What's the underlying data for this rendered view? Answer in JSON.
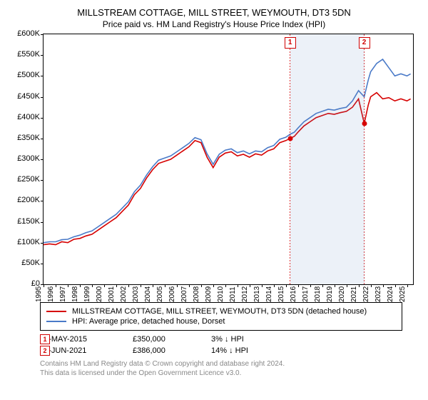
{
  "title_main": "MILLSTREAM COTTAGE, MILL STREET, WEYMOUTH, DT3 5DN",
  "title_sub": "Price paid vs. HM Land Registry's House Price Index (HPI)",
  "chart": {
    "type": "line",
    "xlim": [
      1995,
      2025.5
    ],
    "ylim": [
      0,
      600000
    ],
    "ytick_step": 50000,
    "ytick_labels": [
      "£0",
      "£50K",
      "£100K",
      "£150K",
      "£200K",
      "£250K",
      "£300K",
      "£350K",
      "£400K",
      "£450K",
      "£500K",
      "£550K",
      "£600K"
    ],
    "xtick_step": 1,
    "xticks": [
      1995,
      1996,
      1997,
      1998,
      1999,
      2000,
      2001,
      2002,
      2003,
      2004,
      2005,
      2006,
      2007,
      2008,
      2009,
      2010,
      2011,
      2012,
      2013,
      2014,
      2015,
      2016,
      2017,
      2018,
      2019,
      2020,
      2021,
      2022,
      2023,
      2024,
      2025
    ],
    "background_color": "#ffffff",
    "shade_ranges": [
      [
        2015.35,
        2021.47
      ]
    ],
    "line_width": 1.6,
    "series": [
      {
        "name": "property",
        "color": "#d60000",
        "points": [
          [
            1995.0,
            95000
          ],
          [
            1995.5,
            97000
          ],
          [
            1996.0,
            95000
          ],
          [
            1996.5,
            102000
          ],
          [
            1997.0,
            100000
          ],
          [
            1997.5,
            108000
          ],
          [
            1998.0,
            110000
          ],
          [
            1998.5,
            116000
          ],
          [
            1999.0,
            120000
          ],
          [
            1999.5,
            130000
          ],
          [
            2000.0,
            140000
          ],
          [
            2000.5,
            150000
          ],
          [
            2001.0,
            160000
          ],
          [
            2001.5,
            175000
          ],
          [
            2002.0,
            190000
          ],
          [
            2002.5,
            215000
          ],
          [
            2003.0,
            230000
          ],
          [
            2003.5,
            255000
          ],
          [
            2004.0,
            275000
          ],
          [
            2004.5,
            290000
          ],
          [
            2005.0,
            295000
          ],
          [
            2005.5,
            300000
          ],
          [
            2006.0,
            310000
          ],
          [
            2006.5,
            320000
          ],
          [
            2007.0,
            330000
          ],
          [
            2007.5,
            345000
          ],
          [
            2008.0,
            340000
          ],
          [
            2008.5,
            305000
          ],
          [
            2009.0,
            280000
          ],
          [
            2009.5,
            305000
          ],
          [
            2010.0,
            315000
          ],
          [
            2010.5,
            318000
          ],
          [
            2011.0,
            308000
          ],
          [
            2011.5,
            312000
          ],
          [
            2012.0,
            305000
          ],
          [
            2012.5,
            313000
          ],
          [
            2013.0,
            310000
          ],
          [
            2013.5,
            320000
          ],
          [
            2014.0,
            325000
          ],
          [
            2014.5,
            340000
          ],
          [
            2015.0,
            345000
          ],
          [
            2015.35,
            350000
          ],
          [
            2015.7,
            355000
          ],
          [
            2016.0,
            365000
          ],
          [
            2016.5,
            380000
          ],
          [
            2017.0,
            390000
          ],
          [
            2017.5,
            400000
          ],
          [
            2018.0,
            405000
          ],
          [
            2018.5,
            410000
          ],
          [
            2019.0,
            408000
          ],
          [
            2019.5,
            412000
          ],
          [
            2020.0,
            415000
          ],
          [
            2020.5,
            425000
          ],
          [
            2021.0,
            445000
          ],
          [
            2021.47,
            386000
          ],
          [
            2021.8,
            430000
          ],
          [
            2022.0,
            450000
          ],
          [
            2022.5,
            460000
          ],
          [
            2023.0,
            445000
          ],
          [
            2023.5,
            448000
          ],
          [
            2024.0,
            440000
          ],
          [
            2024.5,
            445000
          ],
          [
            2025.0,
            440000
          ],
          [
            2025.3,
            445000
          ]
        ]
      },
      {
        "name": "hpi",
        "color": "#4a7ac8",
        "points": [
          [
            1995.0,
            100000
          ],
          [
            1995.5,
            102000
          ],
          [
            1996.0,
            102000
          ],
          [
            1996.5,
            107000
          ],
          [
            1997.0,
            108000
          ],
          [
            1997.5,
            114000
          ],
          [
            1998.0,
            118000
          ],
          [
            1998.5,
            124000
          ],
          [
            1999.0,
            128000
          ],
          [
            1999.5,
            138000
          ],
          [
            2000.0,
            148000
          ],
          [
            2000.5,
            158000
          ],
          [
            2001.0,
            168000
          ],
          [
            2001.5,
            183000
          ],
          [
            2002.0,
            198000
          ],
          [
            2002.5,
            222000
          ],
          [
            2003.0,
            238000
          ],
          [
            2003.5,
            262000
          ],
          [
            2004.0,
            282000
          ],
          [
            2004.5,
            298000
          ],
          [
            2005.0,
            303000
          ],
          [
            2005.5,
            308000
          ],
          [
            2006.0,
            318000
          ],
          [
            2006.5,
            328000
          ],
          [
            2007.0,
            338000
          ],
          [
            2007.5,
            352000
          ],
          [
            2008.0,
            347000
          ],
          [
            2008.5,
            313000
          ],
          [
            2009.0,
            288000
          ],
          [
            2009.5,
            312000
          ],
          [
            2010.0,
            322000
          ],
          [
            2010.5,
            325000
          ],
          [
            2011.0,
            316000
          ],
          [
            2011.5,
            320000
          ],
          [
            2012.0,
            313000
          ],
          [
            2012.5,
            320000
          ],
          [
            2013.0,
            318000
          ],
          [
            2013.5,
            328000
          ],
          [
            2014.0,
            333000
          ],
          [
            2014.5,
            348000
          ],
          [
            2015.0,
            353000
          ],
          [
            2015.35,
            360000
          ],
          [
            2015.7,
            365000
          ],
          [
            2016.0,
            375000
          ],
          [
            2016.5,
            390000
          ],
          [
            2017.0,
            400000
          ],
          [
            2017.5,
            410000
          ],
          [
            2018.0,
            415000
          ],
          [
            2018.5,
            420000
          ],
          [
            2019.0,
            418000
          ],
          [
            2019.5,
            422000
          ],
          [
            2020.0,
            425000
          ],
          [
            2020.5,
            440000
          ],
          [
            2021.0,
            465000
          ],
          [
            2021.47,
            450000
          ],
          [
            2021.8,
            490000
          ],
          [
            2022.0,
            510000
          ],
          [
            2022.5,
            530000
          ],
          [
            2023.0,
            540000
          ],
          [
            2023.5,
            520000
          ],
          [
            2024.0,
            500000
          ],
          [
            2024.5,
            505000
          ],
          [
            2025.0,
            500000
          ],
          [
            2025.3,
            505000
          ]
        ]
      }
    ],
    "sale_markers": [
      {
        "n": "1",
        "x": 2015.35,
        "y": 350000,
        "color": "#d60000"
      },
      {
        "n": "2",
        "x": 2021.47,
        "y": 386000,
        "color": "#d60000"
      }
    ]
  },
  "legend": [
    {
      "color": "#d60000",
      "label": "MILLSTREAM COTTAGE, MILL STREET, WEYMOUTH, DT3 5DN (detached house)"
    },
    {
      "color": "#4a7ac8",
      "label": "HPI: Average price, detached house, Dorset"
    }
  ],
  "sales": [
    {
      "n": "1",
      "date": "08-MAY-2015",
      "price": "£350,000",
      "delta": "3% ↓ HPI"
    },
    {
      "n": "2",
      "date": "18-JUN-2021",
      "price": "£386,000",
      "delta": "14% ↓ HPI"
    }
  ],
  "footer_line1": "Contains HM Land Registry data © Crown copyright and database right 2024.",
  "footer_line2": "This data is licensed under the Open Government Licence v3.0."
}
